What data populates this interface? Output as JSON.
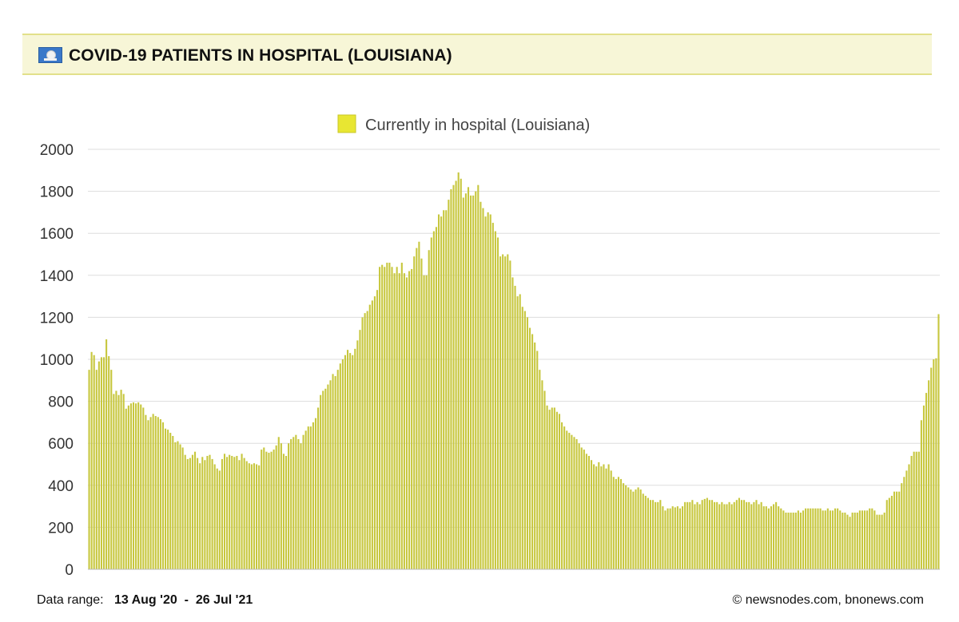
{
  "header": {
    "title": "COVID-19 PATIENTS IN HOSPITAL (LOUISIANA)",
    "flag_icon": "louisiana-flag-icon"
  },
  "footer": {
    "range_label": "Data range:",
    "range_start": "13 Aug '20",
    "range_sep": "-",
    "range_end": "26 Jul '21",
    "credit": "© newsnodes.com, bnonews.com"
  },
  "colors": {
    "bar_fill": "#c7c73e",
    "bar_stroke": "#a8a82a",
    "legend_swatch": "#e8e632",
    "grid": "#dddddd",
    "header_bg": "#f7f6d7"
  },
  "chart_data": {
    "type": "bar",
    "legend": "top-center",
    "series": [
      {
        "name": "Currently in hospital (Louisiana)",
        "values": [
          950,
          1035,
          1020,
          950,
          990,
          1010,
          1010,
          1095,
          1015,
          950,
          835,
          850,
          830,
          855,
          835,
          765,
          780,
          790,
          795,
          790,
          795,
          785,
          770,
          735,
          710,
          725,
          740,
          730,
          725,
          715,
          700,
          670,
          665,
          650,
          635,
          605,
          610,
          595,
          580,
          545,
          525,
          530,
          545,
          560,
          530,
          505,
          535,
          520,
          540,
          545,
          525,
          500,
          480,
          470,
          525,
          550,
          535,
          545,
          540,
          535,
          540,
          520,
          550,
          530,
          515,
          505,
          500,
          505,
          500,
          495,
          570,
          580,
          560,
          555,
          560,
          570,
          590,
          630,
          600,
          550,
          540,
          600,
          620,
          630,
          640,
          620,
          600,
          640,
          660,
          680,
          680,
          700,
          720,
          770,
          830,
          850,
          860,
          880,
          900,
          930,
          920,
          950,
          980,
          1000,
          1020,
          1045,
          1030,
          1020,
          1050,
          1090,
          1140,
          1200,
          1220,
          1230,
          1260,
          1280,
          1300,
          1330,
          1440,
          1450,
          1440,
          1460,
          1460,
          1440,
          1410,
          1440,
          1410,
          1460,
          1410,
          1390,
          1420,
          1430,
          1490,
          1530,
          1560,
          1480,
          1400,
          1400,
          1520,
          1580,
          1610,
          1630,
          1690,
          1680,
          1710,
          1710,
          1760,
          1810,
          1830,
          1850,
          1890,
          1860,
          1770,
          1790,
          1820,
          1780,
          1780,
          1800,
          1830,
          1750,
          1720,
          1680,
          1700,
          1690,
          1650,
          1610,
          1580,
          1490,
          1500,
          1490,
          1500,
          1470,
          1390,
          1350,
          1300,
          1310,
          1250,
          1230,
          1200,
          1150,
          1120,
          1080,
          1040,
          950,
          900,
          850,
          780,
          760,
          770,
          770,
          750,
          740,
          700,
          680,
          660,
          650,
          640,
          630,
          620,
          600,
          580,
          570,
          550,
          540,
          520,
          500,
          490,
          510,
          490,
          500,
          480,
          500,
          470,
          440,
          430,
          440,
          430,
          410,
          400,
          390,
          380,
          370,
          380,
          390,
          380,
          360,
          350,
          340,
          330,
          330,
          320,
          320,
          330,
          300,
          280,
          290,
          290,
          300,
          295,
          300,
          290,
          300,
          320,
          320,
          320,
          330,
          310,
          320,
          310,
          330,
          335,
          340,
          330,
          330,
          320,
          320,
          310,
          320,
          310,
          310,
          320,
          310,
          320,
          330,
          340,
          330,
          330,
          320,
          320,
          310,
          320,
          330,
          310,
          320,
          300,
          300,
          290,
          300,
          310,
          320,
          300,
          290,
          280,
          270,
          270,
          270,
          270,
          270,
          280,
          270,
          280,
          290,
          290,
          290,
          290,
          290,
          290,
          290,
          280,
          280,
          290,
          280,
          280,
          290,
          290,
          280,
          270,
          270,
          260,
          250,
          270,
          270,
          270,
          280,
          280,
          280,
          280,
          290,
          290,
          280,
          260,
          260,
          260,
          270,
          330,
          340,
          350,
          370,
          370,
          370,
          410,
          440,
          470,
          500,
          540,
          560,
          560,
          560,
          710,
          780,
          840,
          900,
          960,
          1000,
          1005,
          1215
        ]
      }
    ],
    "ylim": [
      0,
      2000
    ],
    "yticks": [
      "0",
      "200",
      "400",
      "600",
      "800",
      "1000",
      "1200",
      "1400",
      "1600",
      "1800",
      "2000"
    ],
    "grid": true
  }
}
